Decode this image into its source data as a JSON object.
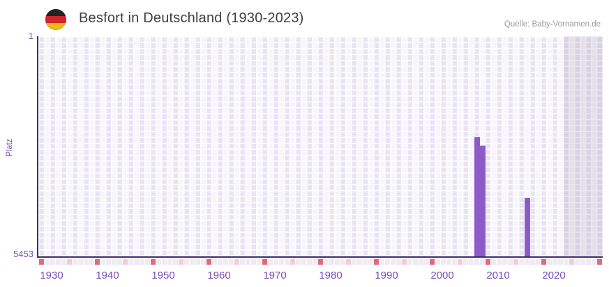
{
  "header": {
    "title": "Besfort in Deutschland (1930-2023)",
    "source": "Quelle: Baby-Vornamen.de",
    "flag_icon": "german-flag-icon"
  },
  "colors": {
    "bar": "#8d5bc9",
    "axis_line": "#3e2b6d",
    "tick_label": "#7a4dbb",
    "title_text": "#3f3f3f",
    "source_text": "#999999",
    "grid_col_dark": "#e9e4f4",
    "grid_col_light": "#f7f5fc",
    "future_overlay": "rgba(128,118,150,0.16)",
    "marker_decade": "#e0697a",
    "marker_half_decade": "#f3ccd8",
    "marker_default": "#efeaf7"
  },
  "chart_data": {
    "type": "bar",
    "title": "Besfort in Deutschland (1930-2023)",
    "ylabel": "Platz",
    "xlabel": "",
    "grid": true,
    "legend_position": "none",
    "y_axis": {
      "top_tick_label": "1",
      "bottom_tick_label": "5453",
      "min": 1,
      "max": 5453,
      "inverted": true
    },
    "x_axis": {
      "start_year": 1930,
      "end_year": 2030,
      "data_start_year": 1930,
      "data_end_year": 2023,
      "tick_labels": [
        "1930",
        "1940",
        "1950",
        "1960",
        "1970",
        "1980",
        "1990",
        "2000",
        "2010",
        "2020"
      ],
      "decade_marker_years": [
        1930,
        1940,
        1950,
        1960,
        1970,
        1980,
        1990,
        2000,
        2010,
        2020,
        2030
      ],
      "half_decade_marker_years": [
        1935,
        1945,
        1955,
        1965,
        1975,
        1985,
        1995,
        2005,
        2015,
        2025
      ],
      "future_band_start_year": 2024
    },
    "series": [
      {
        "name": "Platz",
        "points": [
          {
            "year": 2008,
            "platz": 2500
          },
          {
            "year": 2009,
            "platz": 2710
          },
          {
            "year": 2017,
            "platz": 4010
          }
        ]
      }
    ]
  }
}
